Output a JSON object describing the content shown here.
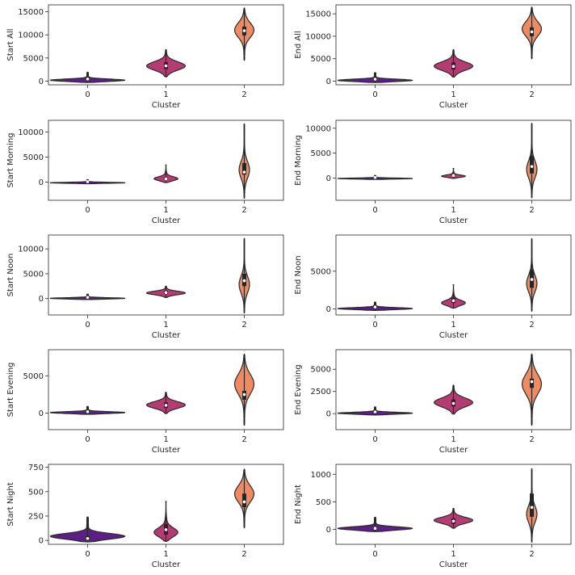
{
  "chart_data": [
    {
      "type": "violin",
      "xlabel": "Cluster",
      "ylabel": "Start All",
      "categories": [
        "0",
        "1",
        "2"
      ],
      "ylim": [
        -800,
        16500
      ],
      "yticks": [
        0,
        5000,
        10000,
        15000
      ],
      "colors": [
        "#5b1f85",
        "#b33d73",
        "#f08a62"
      ],
      "violins": [
        {
          "min": -300,
          "max": 1900,
          "q1": 100,
          "median": 450,
          "q3": 900,
          "shape": "flat"
        },
        {
          "min": 900,
          "max": 6800,
          "q1": 2600,
          "median": 3300,
          "q3": 4100,
          "shape": "mid"
        },
        {
          "min": 4500,
          "max": 15800,
          "q1": 9900,
          "median": 10900,
          "q3": 11800,
          "shape": "upper"
        }
      ]
    },
    {
      "type": "violin",
      "xlabel": "Cluster",
      "ylabel": "End All",
      "categories": [
        "0",
        "1",
        "2"
      ],
      "ylim": [
        -800,
        17000
      ],
      "yticks": [
        0,
        5000,
        10000,
        15000
      ],
      "colors": [
        "#5b1f85",
        "#b33d73",
        "#f08a62"
      ],
      "violins": [
        {
          "min": -300,
          "max": 1900,
          "q1": 100,
          "median": 450,
          "q3": 900,
          "shape": "flat"
        },
        {
          "min": 900,
          "max": 7000,
          "q1": 2600,
          "median": 3300,
          "q3": 4200,
          "shape": "mid"
        },
        {
          "min": 5000,
          "max": 16500,
          "q1": 10000,
          "median": 11000,
          "q3": 12000,
          "shape": "upper"
        }
      ]
    },
    {
      "type": "violin",
      "xlabel": "Cluster",
      "ylabel": "Start Morning",
      "categories": [
        "0",
        "1",
        "2"
      ],
      "ylim": [
        -3600,
        12300
      ],
      "yticks": [
        0,
        5000,
        10000
      ],
      "colors": [
        "#5b1f85",
        "#b33d73",
        "#f08a62"
      ],
      "violins": [
        {
          "min": -300,
          "max": 500,
          "q1": 0,
          "median": 100,
          "q3": 250,
          "shape": "flat"
        },
        {
          "min": -100,
          "max": 3400,
          "q1": 450,
          "median": 650,
          "q3": 950,
          "shape": "low"
        },
        {
          "min": -3200,
          "max": 11600,
          "q1": 1500,
          "median": 2000,
          "q3": 3800,
          "shape": "thin"
        }
      ]
    },
    {
      "type": "violin",
      "xlabel": "Cluster",
      "ylabel": "End Morning",
      "categories": [
        "0",
        "1",
        "2"
      ],
      "ylim": [
        -4500,
        11600
      ],
      "yticks": [
        0,
        5000,
        10000
      ],
      "colors": [
        "#5b1f85",
        "#b33d73",
        "#f08a62"
      ],
      "violins": [
        {
          "min": -300,
          "max": 500,
          "q1": 0,
          "median": 100,
          "q3": 250,
          "shape": "flat"
        },
        {
          "min": -100,
          "max": 1900,
          "q1": 350,
          "median": 500,
          "q3": 750,
          "shape": "low"
        },
        {
          "min": -4000,
          "max": 11000,
          "q1": 900,
          "median": 2300,
          "q3": 4500,
          "shape": "thin"
        }
      ]
    },
    {
      "type": "violin",
      "xlabel": "Cluster",
      "ylabel": "Start Noon",
      "categories": [
        "0",
        "1",
        "2"
      ],
      "ylim": [
        -3300,
        12800
      ],
      "yticks": [
        0,
        5000,
        10000
      ],
      "colors": [
        "#5b1f85",
        "#b33d73",
        "#f08a62"
      ],
      "violins": [
        {
          "min": -200,
          "max": 900,
          "q1": 50,
          "median": 250,
          "q3": 500,
          "shape": "flat"
        },
        {
          "min": 200,
          "max": 2500,
          "q1": 900,
          "median": 1200,
          "q3": 1600,
          "shape": "mid"
        },
        {
          "min": -2900,
          "max": 12100,
          "q1": 2500,
          "median": 3600,
          "q3": 5000,
          "shape": "thin"
        }
      ]
    },
    {
      "type": "violin",
      "xlabel": "Cluster",
      "ylabel": "End Noon",
      "categories": [
        "0",
        "1",
        "2"
      ],
      "ylim": [
        -800,
        9800
      ],
      "yticks": [
        0,
        5000
      ],
      "colors": [
        "#5b1f85",
        "#b33d73",
        "#f08a62"
      ],
      "violins": [
        {
          "min": -200,
          "max": 900,
          "q1": 50,
          "median": 250,
          "q3": 500,
          "shape": "flat"
        },
        {
          "min": 100,
          "max": 3200,
          "q1": 800,
          "median": 1100,
          "q3": 1500,
          "shape": "low"
        },
        {
          "min": -300,
          "max": 9300,
          "q1": 2800,
          "median": 3900,
          "q3": 5200,
          "shape": "thin"
        }
      ]
    },
    {
      "type": "violin",
      "xlabel": "Cluster",
      "ylabel": "Start Evening",
      "categories": [
        "0",
        "1",
        "2"
      ],
      "ylim": [
        -2200,
        8500
      ],
      "yticks": [
        0,
        5000
      ],
      "colors": [
        "#5b1f85",
        "#b33d73",
        "#f08a62"
      ],
      "violins": [
        {
          "min": -150,
          "max": 900,
          "q1": 50,
          "median": 200,
          "q3": 450,
          "shape": "flat"
        },
        {
          "min": -50,
          "max": 2800,
          "q1": 700,
          "median": 1050,
          "q3": 1450,
          "shape": "mid"
        },
        {
          "min": -1600,
          "max": 7900,
          "q1": 1800,
          "median": 2500,
          "q3": 3000,
          "shape": "upper"
        }
      ]
    },
    {
      "type": "violin",
      "xlabel": "Cluster",
      "ylabel": "End Evening",
      "categories": [
        "0",
        "1",
        "2"
      ],
      "ylim": [
        -1800,
        7200
      ],
      "yticks": [
        0,
        2500,
        5000
      ],
      "colors": [
        "#5b1f85",
        "#b33d73",
        "#f08a62"
      ],
      "violins": [
        {
          "min": -150,
          "max": 750,
          "q1": 50,
          "median": 200,
          "q3": 400,
          "shape": "flat"
        },
        {
          "min": -50,
          "max": 3200,
          "q1": 800,
          "median": 1150,
          "q3": 1600,
          "shape": "mid"
        },
        {
          "min": -1300,
          "max": 6700,
          "q1": 2900,
          "median": 3600,
          "q3": 3950,
          "shape": "upper"
        }
      ]
    },
    {
      "type": "violin",
      "xlabel": "Cluster",
      "ylabel": "Start Night",
      "categories": [
        "0",
        "1",
        "2"
      ],
      "ylim": [
        -40,
        780
      ],
      "yticks": [
        0,
        250,
        500,
        750
      ],
      "colors": [
        "#5b1f85",
        "#b33d73",
        "#f08a62"
      ],
      "violins": [
        {
          "min": -15,
          "max": 240,
          "q1": 5,
          "median": 20,
          "q3": 45,
          "shape": "flat"
        },
        {
          "min": -10,
          "max": 400,
          "q1": 60,
          "median": 110,
          "q3": 170,
          "shape": "low"
        },
        {
          "min": 130,
          "max": 730,
          "q1": 340,
          "median": 395,
          "q3": 480,
          "shape": "upper"
        }
      ]
    },
    {
      "type": "violin",
      "xlabel": "Cluster",
      "ylabel": "End Night",
      "categories": [
        "0",
        "1",
        "2"
      ],
      "ylim": [
        -270,
        1180
      ],
      "yticks": [
        0,
        500,
        1000
      ],
      "colors": [
        "#5b1f85",
        "#b33d73",
        "#f08a62"
      ],
      "violins": [
        {
          "min": -40,
          "max": 220,
          "q1": 5,
          "median": 20,
          "q3": 50,
          "shape": "flat"
        },
        {
          "min": 20,
          "max": 380,
          "q1": 100,
          "median": 150,
          "q3": 200,
          "shape": "mid"
        },
        {
          "min": -230,
          "max": 1100,
          "q1": 230,
          "median": 400,
          "q3": 650,
          "shape": "thin"
        }
      ]
    }
  ]
}
